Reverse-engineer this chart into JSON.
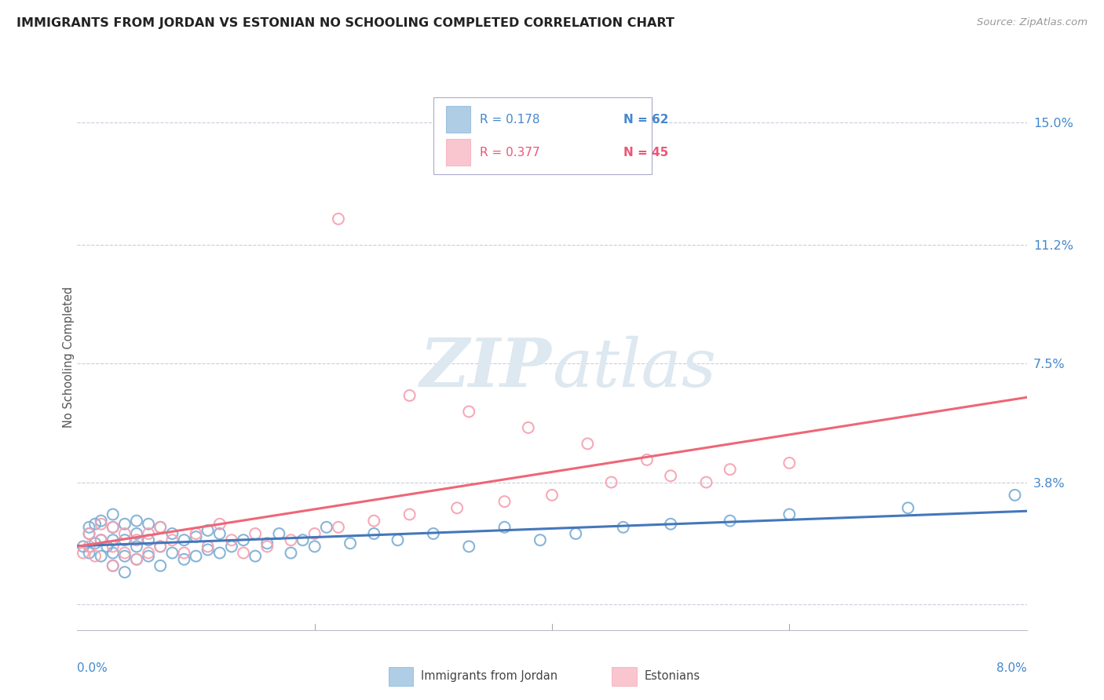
{
  "title": "IMMIGRANTS FROM JORDAN VS ESTONIAN NO SCHOOLING COMPLETED CORRELATION CHART",
  "source": "Source: ZipAtlas.com",
  "ylabel": "No Schooling Completed",
  "yticks": [
    0.0,
    0.038,
    0.075,
    0.112,
    0.15
  ],
  "ytick_labels": [
    "",
    "3.8%",
    "7.5%",
    "11.2%",
    "15.0%"
  ],
  "xlim": [
    0.0,
    0.08
  ],
  "ylim": [
    -0.008,
    0.162
  ],
  "legend_r1": "R = 0.178",
  "legend_n1": "N = 62",
  "legend_r2": "R = 0.377",
  "legend_n2": "N = 45",
  "color_blue": "#7aadd4",
  "color_pink": "#f5a0b0",
  "color_blue_line": "#4477BB",
  "color_pink_line": "#EE6677",
  "color_blue_text": "#4488CC",
  "color_pink_text": "#EE5577",
  "watermark_color": "#dde8f0",
  "background_color": "#FFFFFF",
  "grid_color": "#ccccdd",
  "jordan_x": [
    0.0005,
    0.001,
    0.001,
    0.001,
    0.0015,
    0.0015,
    0.002,
    0.002,
    0.002,
    0.0025,
    0.003,
    0.003,
    0.003,
    0.003,
    0.003,
    0.004,
    0.004,
    0.004,
    0.004,
    0.005,
    0.005,
    0.005,
    0.005,
    0.006,
    0.006,
    0.006,
    0.007,
    0.007,
    0.007,
    0.008,
    0.008,
    0.009,
    0.009,
    0.01,
    0.01,
    0.011,
    0.011,
    0.012,
    0.012,
    0.013,
    0.014,
    0.015,
    0.016,
    0.017,
    0.018,
    0.019,
    0.02,
    0.021,
    0.023,
    0.025,
    0.027,
    0.03,
    0.033,
    0.036,
    0.039,
    0.042,
    0.046,
    0.05,
    0.055,
    0.06,
    0.07,
    0.079
  ],
  "jordan_y": [
    0.018,
    0.022,
    0.016,
    0.024,
    0.019,
    0.025,
    0.015,
    0.02,
    0.026,
    0.018,
    0.012,
    0.016,
    0.02,
    0.024,
    0.028,
    0.01,
    0.015,
    0.02,
    0.025,
    0.014,
    0.018,
    0.022,
    0.026,
    0.015,
    0.02,
    0.025,
    0.012,
    0.018,
    0.024,
    0.016,
    0.022,
    0.014,
    0.02,
    0.015,
    0.021,
    0.017,
    0.023,
    0.016,
    0.022,
    0.018,
    0.02,
    0.015,
    0.019,
    0.022,
    0.016,
    0.02,
    0.018,
    0.024,
    0.019,
    0.022,
    0.02,
    0.022,
    0.018,
    0.024,
    0.02,
    0.022,
    0.024,
    0.025,
    0.026,
    0.028,
    0.03,
    0.034
  ],
  "estonian_x": [
    0.0005,
    0.001,
    0.001,
    0.0015,
    0.002,
    0.002,
    0.003,
    0.003,
    0.003,
    0.004,
    0.004,
    0.005,
    0.005,
    0.006,
    0.006,
    0.007,
    0.007,
    0.008,
    0.009,
    0.01,
    0.011,
    0.012,
    0.013,
    0.014,
    0.015,
    0.016,
    0.018,
    0.02,
    0.022,
    0.025,
    0.028,
    0.032,
    0.036,
    0.04,
    0.045,
    0.05,
    0.055,
    0.06,
    0.022,
    0.028,
    0.033,
    0.038,
    0.043,
    0.048,
    0.053
  ],
  "estonian_y": [
    0.016,
    0.018,
    0.022,
    0.015,
    0.02,
    0.025,
    0.012,
    0.018,
    0.024,
    0.016,
    0.022,
    0.014,
    0.02,
    0.016,
    0.022,
    0.018,
    0.024,
    0.02,
    0.016,
    0.022,
    0.018,
    0.025,
    0.02,
    0.016,
    0.022,
    0.018,
    0.02,
    0.022,
    0.024,
    0.026,
    0.028,
    0.03,
    0.032,
    0.034,
    0.038,
    0.04,
    0.042,
    0.044,
    0.12,
    0.065,
    0.06,
    0.055,
    0.05,
    0.045,
    0.038
  ]
}
